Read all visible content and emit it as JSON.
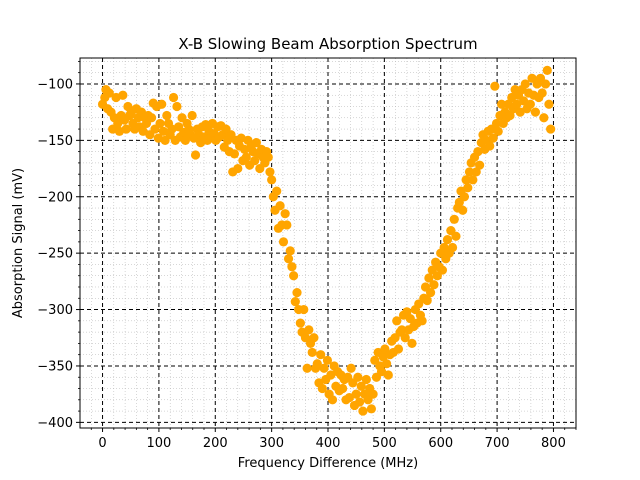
{
  "chart_data": {
    "type": "scatter",
    "title": "X-B Slowing Beam Absorption Spectrum",
    "xlabel": "Frequency Difference (MHz)",
    "ylabel": "Absorption Signal (mV)",
    "xlim": [
      -40,
      840
    ],
    "ylim": [
      -405,
      -77
    ],
    "x_ticks": [
      0,
      100,
      200,
      300,
      400,
      500,
      600,
      700,
      800
    ],
    "y_ticks": [
      -400,
      -350,
      -300,
      -250,
      -200,
      -150,
      -100
    ],
    "x_tick_labels": [
      "0",
      "100",
      "200",
      "300",
      "400",
      "500",
      "600",
      "700",
      "800"
    ],
    "y_tick_labels": [
      "−400",
      "−350",
      "−300",
      "−250",
      "−200",
      "−150",
      "−100"
    ],
    "grid": {
      "major": "dashed black",
      "minor": "dotted gray"
    },
    "marker_color": "#ffa500",
    "series": [
      {
        "points": [
          [
            0,
            -118
          ],
          [
            4,
            -112
          ],
          [
            6,
            -105
          ],
          [
            9,
            -122
          ],
          [
            12,
            -108
          ],
          [
            15,
            -125
          ],
          [
            18,
            -140
          ],
          [
            21,
            -130
          ],
          [
            24,
            -112
          ],
          [
            27,
            -135
          ],
          [
            30,
            -142
          ],
          [
            33,
            -128
          ],
          [
            36,
            -110
          ],
          [
            39,
            -132
          ],
          [
            42,
            -140
          ],
          [
            45,
            -120
          ],
          [
            48,
            -128
          ],
          [
            51,
            -125
          ],
          [
            54,
            -135
          ],
          [
            57,
            -140
          ],
          [
            60,
            -122
          ],
          [
            63,
            -130
          ],
          [
            66,
            -138
          ],
          [
            69,
            -125
          ],
          [
            72,
            -142
          ],
          [
            75,
            -130
          ],
          [
            78,
            -135
          ],
          [
            81,
            -128
          ],
          [
            84,
            -145
          ],
          [
            87,
            -130
          ],
          [
            90,
            -117
          ],
          [
            93,
            -140
          ],
          [
            96,
            -120
          ],
          [
            99,
            -148
          ],
          [
            102,
            -135
          ],
          [
            105,
            -118
          ],
          [
            108,
            -142
          ],
          [
            111,
            -150
          ],
          [
            114,
            -128
          ],
          [
            117,
            -135
          ],
          [
            120,
            -145
          ],
          [
            123,
            -140
          ],
          [
            126,
            -112
          ],
          [
            129,
            -150
          ],
          [
            132,
            -120
          ],
          [
            135,
            -138
          ],
          [
            138,
            -147
          ],
          [
            141,
            -130
          ],
          [
            144,
            -143
          ],
          [
            147,
            -150
          ],
          [
            150,
            -135
          ],
          [
            153,
            -140
          ],
          [
            156,
            -145
          ],
          [
            159,
            -128
          ],
          [
            162,
            -148
          ],
          [
            165,
            -163
          ],
          [
            168,
            -140
          ],
          [
            171,
            -145
          ],
          [
            174,
            -152
          ],
          [
            177,
            -138
          ],
          [
            180,
            -147
          ],
          [
            183,
            -136
          ],
          [
            186,
            -150
          ],
          [
            189,
            -142
          ],
          [
            192,
            -148
          ],
          [
            195,
            -135
          ],
          [
            198,
            -144
          ],
          [
            201,
            -150
          ],
          [
            204,
            -138
          ],
          [
            207,
            -147
          ],
          [
            210,
            -137
          ],
          [
            213,
            -145
          ],
          [
            216,
            -156
          ],
          [
            219,
            -140
          ],
          [
            222,
            -150
          ],
          [
            225,
            -160
          ],
          [
            228,
            -145
          ],
          [
            231,
            -178
          ],
          [
            234,
            -162
          ],
          [
            237,
            -150
          ],
          [
            240,
            -175
          ],
          [
            243,
            -155
          ],
          [
            246,
            -148
          ],
          [
            249,
            -168
          ],
          [
            252,
            -158
          ],
          [
            255,
            -165
          ],
          [
            258,
            -150
          ],
          [
            261,
            -172
          ],
          [
            264,
            -155
          ],
          [
            267,
            -160
          ],
          [
            270,
            -168
          ],
          [
            273,
            -152
          ],
          [
            276,
            -162
          ],
          [
            279,
            -175
          ],
          [
            282,
            -158
          ],
          [
            285,
            -165
          ],
          [
            288,
            -170
          ],
          [
            291,
            -160
          ],
          [
            294,
            -165
          ],
          [
            297,
            -178
          ],
          [
            300,
            -185
          ],
          [
            303,
            -200
          ],
          [
            306,
            -212
          ],
          [
            309,
            -195
          ],
          [
            312,
            -228
          ],
          [
            315,
            -208
          ],
          [
            318,
            -225
          ],
          [
            321,
            -240
          ],
          [
            324,
            -215
          ],
          [
            327,
            -225
          ],
          [
            330,
            -255
          ],
          [
            333,
            -248
          ],
          [
            336,
            -262
          ],
          [
            339,
            -270
          ],
          [
            342,
            -293
          ],
          [
            345,
            -285
          ],
          [
            348,
            -300
          ],
          [
            351,
            -312
          ],
          [
            354,
            -320
          ],
          [
            357,
            -300
          ],
          [
            360,
            -325
          ],
          [
            363,
            -352
          ],
          [
            366,
            -318
          ],
          [
            369,
            -330
          ],
          [
            372,
            -338
          ],
          [
            375,
            -325
          ],
          [
            378,
            -352
          ],
          [
            381,
            -348
          ],
          [
            384,
            -365
          ],
          [
            387,
            -340
          ],
          [
            390,
            -370
          ],
          [
            393,
            -352
          ],
          [
            396,
            -362
          ],
          [
            399,
            -345
          ],
          [
            402,
            -375
          ],
          [
            405,
            -358
          ],
          [
            408,
            -380
          ],
          [
            411,
            -350
          ],
          [
            414,
            -368
          ],
          [
            417,
            -355
          ],
          [
            420,
            -372
          ],
          [
            423,
            -358
          ],
          [
            426,
            -370
          ],
          [
            429,
            -362
          ],
          [
            432,
            -380
          ],
          [
            435,
            -360
          ],
          [
            438,
            -378
          ],
          [
            441,
            -352
          ],
          [
            444,
            -365
          ],
          [
            447,
            -385
          ],
          [
            450,
            -375
          ],
          [
            453,
            -360
          ],
          [
            456,
            -382
          ],
          [
            459,
            -368
          ],
          [
            462,
            -390
          ],
          [
            465,
            -375
          ],
          [
            468,
            -362
          ],
          [
            471,
            -380
          ],
          [
            474,
            -370
          ],
          [
            477,
            -388
          ],
          [
            480,
            -375
          ],
          [
            483,
            -345
          ],
          [
            486,
            -360
          ],
          [
            489,
            -338
          ],
          [
            492,
            -350
          ],
          [
            495,
            -355
          ],
          [
            498,
            -342
          ],
          [
            501,
            -335
          ],
          [
            504,
            -348
          ],
          [
            507,
            -358
          ],
          [
            510,
            -340
          ],
          [
            513,
            -328
          ],
          [
            516,
            -338
          ],
          [
            519,
            -325
          ],
          [
            522,
            -310
          ],
          [
            525,
            -335
          ],
          [
            528,
            -320
          ],
          [
            531,
            -318
          ],
          [
            534,
            -305
          ],
          [
            537,
            -325
          ],
          [
            540,
            -302
          ],
          [
            543,
            -318
          ],
          [
            546,
            -308
          ],
          [
            549,
            -330
          ],
          [
            552,
            -315
          ],
          [
            555,
            -300
          ],
          [
            558,
            -312
          ],
          [
            561,
            -295
          ],
          [
            564,
            -305
          ],
          [
            567,
            -310
          ],
          [
            570,
            -290
          ],
          [
            573,
            -280
          ],
          [
            576,
            -292
          ],
          [
            579,
            -272
          ],
          [
            582,
            -285
          ],
          [
            585,
            -265
          ],
          [
            588,
            -278
          ],
          [
            591,
            -258
          ],
          [
            594,
            -270
          ],
          [
            597,
            -262
          ],
          [
            600,
            -250
          ],
          [
            603,
            -265
          ],
          [
            606,
            -245
          ],
          [
            609,
            -255
          ],
          [
            612,
            -238
          ],
          [
            615,
            -250
          ],
          [
            618,
            -230
          ],
          [
            621,
            -245
          ],
          [
            624,
            -220
          ],
          [
            627,
            -235
          ],
          [
            630,
            -210
          ],
          [
            633,
            -205
          ],
          [
            636,
            -195
          ],
          [
            639,
            -212
          ],
          [
            642,
            -200
          ],
          [
            645,
            -185
          ],
          [
            648,
            -192
          ],
          [
            651,
            -178
          ],
          [
            654,
            -170
          ],
          [
            657,
            -185
          ],
          [
            660,
            -165
          ],
          [
            663,
            -178
          ],
          [
            666,
            -160
          ],
          [
            669,
            -172
          ],
          [
            672,
            -152
          ],
          [
            675,
            -145
          ],
          [
            678,
            -158
          ],
          [
            681,
            -150
          ],
          [
            684,
            -142
          ],
          [
            687,
            -155
          ],
          [
            690,
            -140
          ],
          [
            693,
            -148
          ],
          [
            696,
            -102
          ],
          [
            699,
            -135
          ],
          [
            702,
            -142
          ],
          [
            705,
            -128
          ],
          [
            708,
            -118
          ],
          [
            711,
            -135
          ],
          [
            714,
            -125
          ],
          [
            717,
            -130
          ],
          [
            720,
            -118
          ],
          [
            723,
            -128
          ],
          [
            726,
            -112
          ],
          [
            729,
            -122
          ],
          [
            732,
            -105
          ],
          [
            735,
            -118
          ],
          [
            738,
            -110
          ],
          [
            741,
            -125
          ],
          [
            744,
            -105
          ],
          [
            747,
            -115
          ],
          [
            750,
            -100
          ],
          [
            753,
            -122
          ],
          [
            756,
            -108
          ],
          [
            759,
            -118
          ],
          [
            762,
            -95
          ],
          [
            765,
            -110
          ],
          [
            768,
            -125
          ],
          [
            771,
            -100
          ],
          [
            774,
            -112
          ],
          [
            777,
            -95
          ],
          [
            780,
            -108
          ],
          [
            783,
            -130
          ],
          [
            786,
            -100
          ],
          [
            789,
            -88
          ],
          [
            792,
            -118
          ],
          [
            795,
            -140
          ]
        ]
      }
    ]
  }
}
